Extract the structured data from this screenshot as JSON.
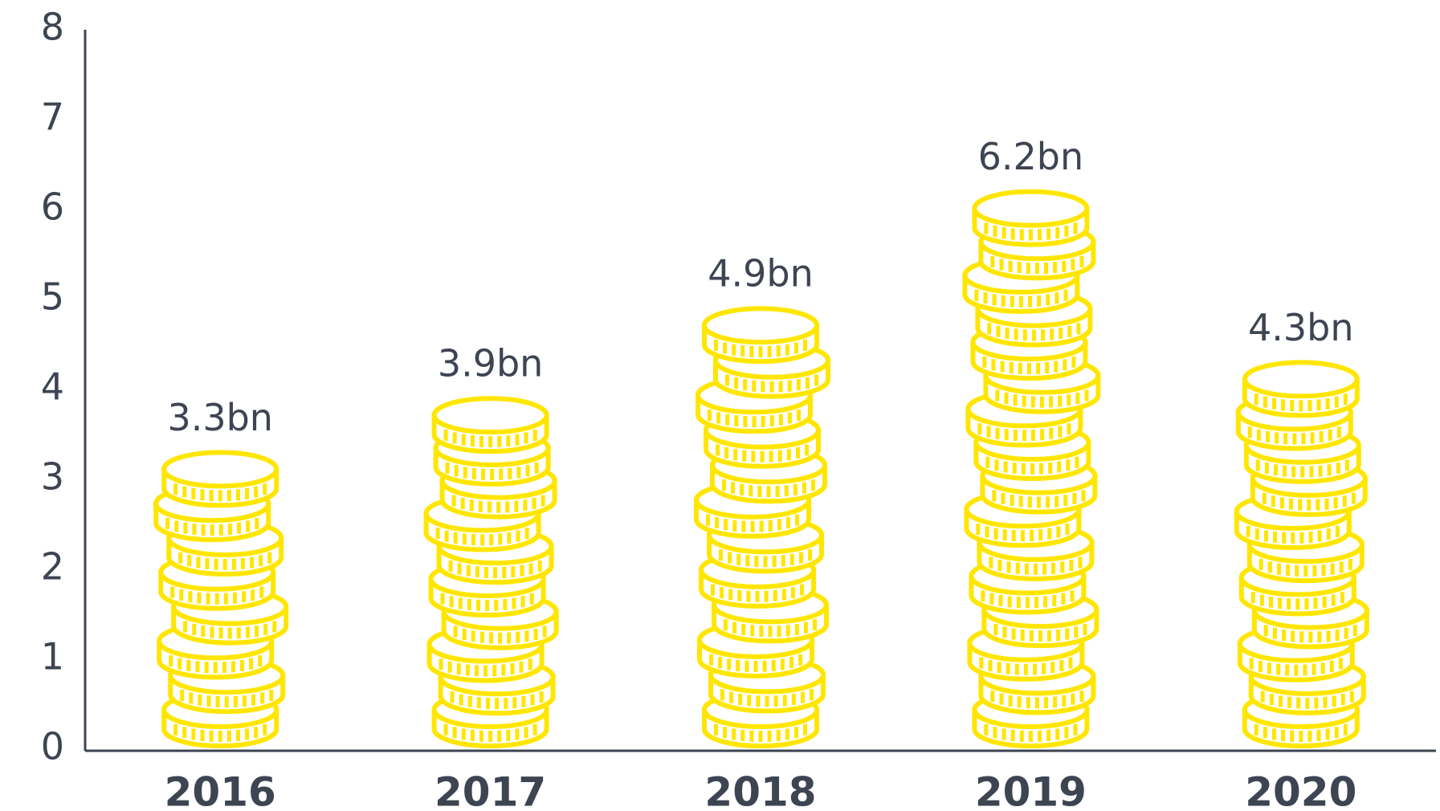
{
  "chart_data": {
    "type": "coin-stack",
    "categories": [
      "2016",
      "2017",
      "2018",
      "2019",
      "2020"
    ],
    "values": [
      3.3,
      3.9,
      4.9,
      6.2,
      4.3
    ],
    "value_labels": [
      "3.3bn",
      "3.9bn",
      "4.9bn",
      "6.2bn",
      "4.3bn"
    ],
    "color": "#ffe600",
    "ylim": [
      0,
      8
    ],
    "yticks": [
      0,
      1,
      2,
      3,
      4,
      5,
      6,
      7,
      8
    ],
    "grid": false
  }
}
